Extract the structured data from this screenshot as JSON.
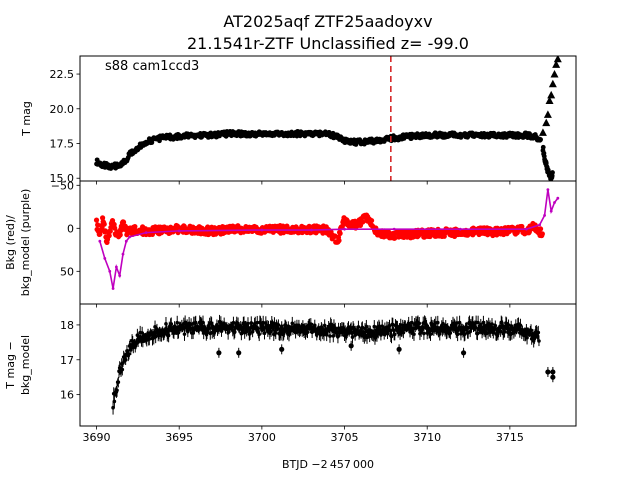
{
  "figure": {
    "title_line1": "AT2025aqf  ZTF25aadoyxv",
    "title_line2": "21.1541r-ZTF Unclassified z= -99.0",
    "xlabel": "BTJD −2 457 000"
  },
  "chart_data": [
    {
      "type": "scatter",
      "name": "tmag-panel",
      "ylabel": "T mag",
      "annotation": "s88 cam1ccd3",
      "xlim": [
        3689,
        3719
      ],
      "ylim": [
        23.8,
        14.8
      ],
      "y_inverted": true,
      "x_ticks": [
        3690,
        3695,
        3700,
        3705,
        3710,
        3715
      ],
      "y_ticks": [
        15.0,
        17.5,
        20.0,
        22.5
      ],
      "y_tick_labels": [
        "15.0",
        "17.5",
        "20.0",
        "22.5"
      ],
      "vline": {
        "x": 3707.8,
        "color": "#d62728",
        "style": "dashed"
      },
      "series_color": "#000000",
      "points": {
        "x": [
          3690.0,
          3690.3,
          3690.6,
          3690.9,
          3691.2,
          3691.5,
          3691.8,
          3692.0,
          3692.3,
          3692.6,
          3693.0,
          3693.5,
          3694.0,
          3695.0,
          3696.0,
          3697.0,
          3698.0,
          3699.0,
          3700.0,
          3701.0,
          3702.0,
          3703.0,
          3704.0,
          3704.5,
          3705.0,
          3705.5,
          3706.0,
          3707.0,
          3708.0,
          3709.0,
          3710.0,
          3711.0,
          3712.0,
          3713.0,
          3714.0,
          3715.0,
          3716.0,
          3716.5,
          3716.9
        ],
        "y": [
          16.2,
          16.0,
          15.9,
          15.8,
          15.9,
          16.0,
          16.3,
          16.7,
          17.0,
          17.3,
          17.6,
          17.8,
          17.9,
          18.0,
          18.1,
          18.1,
          18.2,
          18.2,
          18.2,
          18.2,
          18.2,
          18.2,
          18.2,
          18.0,
          17.7,
          17.6,
          17.6,
          17.7,
          17.9,
          18.0,
          18.1,
          18.1,
          18.1,
          18.1,
          18.1,
          18.1,
          18.1,
          18.0,
          17.8
        ]
      },
      "rise": {
        "x": [
          3717.0,
          3717.1,
          3717.2,
          3717.3,
          3717.4,
          3717.5,
          3717.6
        ],
        "y": [
          17.2,
          16.5,
          15.9,
          15.5,
          15.2,
          15.0,
          15.3
        ]
      },
      "upper_limits": {
        "marker": "triangle",
        "x": [
          3717.0,
          3717.2,
          3717.3,
          3717.4,
          3717.5,
          3717.6,
          3717.7,
          3717.8,
          3717.9
        ],
        "y": [
          18.3,
          19.0,
          19.6,
          20.6,
          21.0,
          21.8,
          22.5,
          23.2,
          23.6
        ]
      }
    },
    {
      "type": "scatter",
      "name": "bkg-panel",
      "ylabel_line1": "Bkg (red)/",
      "ylabel_line2": "bkg_model (purple)",
      "xlim": [
        3689,
        3719
      ],
      "ylim": [
        -55,
        88
      ],
      "x_ticks": [
        3690,
        3695,
        3700,
        3705,
        3710,
        3715
      ],
      "y_ticks": [
        50,
        0,
        -50
      ],
      "y_tick_labels": [
        "50",
        "0",
        "−50"
      ],
      "series": [
        {
          "name": "Bkg",
          "color": "#ff0000",
          "x": [
            3690.0,
            3690.2,
            3690.4,
            3690.6,
            3690.8,
            3691.0,
            3691.2,
            3691.4,
            3691.6,
            3691.8,
            3692.0,
            3692.5,
            3693.0,
            3694.0,
            3695.0,
            3696.0,
            3697.0,
            3698.0,
            3699.0,
            3700.0,
            3701.0,
            3702.0,
            3703.0,
            3704.0,
            3704.4,
            3704.6,
            3704.8,
            3705.0,
            3705.3,
            3705.6,
            3706.0,
            3706.3,
            3706.6,
            3707.0,
            3708.0,
            3709.0,
            3710.0,
            3711.0,
            3712.0,
            3713.0,
            3714.0,
            3715.0,
            3716.0,
            3716.5,
            3717.0
          ],
          "y": [
            -5,
            10,
            -12,
            15,
            2,
            -8,
            8,
            5,
            -5,
            4,
            3,
            2,
            3,
            2,
            1,
            2,
            3,
            2,
            1,
            2,
            1,
            2,
            1,
            2,
            12,
            14,
            2,
            -10,
            -2,
            -4,
            -8,
            -12,
            -6,
            6,
            8,
            7,
            6,
            5,
            5,
            4,
            4,
            3,
            2,
            -2,
            7
          ]
        },
        {
          "name": "bkg_model",
          "color": "#bf00bf",
          "x": [
            3690.2,
            3690.5,
            3690.8,
            3691.0,
            3691.2,
            3691.4,
            3691.6,
            3691.8,
            3692.0,
            3693.0,
            3695.0,
            3700.0,
            3703.0,
            3705.0,
            3708.0,
            3712.0,
            3716.0,
            3716.8,
            3717.1,
            3717.3,
            3717.5,
            3717.7,
            3717.9
          ],
          "y": [
            15,
            35,
            50,
            70,
            45,
            55,
            30,
            15,
            10,
            5,
            3,
            2,
            2,
            1,
            1,
            1,
            1,
            -4,
            -15,
            -45,
            -20,
            -30,
            -35
          ]
        }
      ]
    },
    {
      "type": "scatter",
      "name": "diff-panel",
      "ylabel_line1": "T mag −",
      "ylabel_line2": "bkg_model",
      "xlim": [
        3689,
        3719
      ],
      "ylim": [
        18.6,
        15.1
      ],
      "y_inverted": true,
      "x_ticks": [
        3690,
        3695,
        3700,
        3705,
        3710,
        3715
      ],
      "x_tick_labels": [
        "3690",
        "3695",
        "3700",
        "3705",
        "3710",
        "3715"
      ],
      "y_ticks": [
        16,
        17,
        18
      ],
      "y_tick_labels": [
        "16",
        "17",
        "18"
      ],
      "series_color": "#000000",
      "points": {
        "x": [
          3691.0,
          3691.2,
          3691.4,
          3691.6,
          3691.8,
          3692.0,
          3692.3,
          3692.6,
          3693.0,
          3693.5,
          3694.0,
          3695.0,
          3696.0,
          3697.0,
          3698.0,
          3699.0,
          3700.0,
          3701.0,
          3702.0,
          3703.0,
          3704.0,
          3705.0,
          3706.0,
          3707.0,
          3708.0,
          3709.0,
          3710.0,
          3711.0,
          3712.0,
          3713.0,
          3714.0,
          3715.0,
          3716.0,
          3716.8
        ],
        "y": [
          15.8,
          16.2,
          16.6,
          16.9,
          17.1,
          17.3,
          17.5,
          17.6,
          17.7,
          17.8,
          17.85,
          17.9,
          17.9,
          17.9,
          17.95,
          17.9,
          17.9,
          17.9,
          17.9,
          17.9,
          17.85,
          17.8,
          17.8,
          17.8,
          17.85,
          17.9,
          17.9,
          17.9,
          17.9,
          17.9,
          17.9,
          17.9,
          17.8,
          17.6
        ]
      },
      "outliers": {
        "x": [
          3697.4,
          3698.6,
          3701.2,
          3705.4,
          3708.3,
          3712.2,
          3717.3,
          3717.6,
          3717.6
        ],
        "y": [
          17.2,
          17.2,
          17.3,
          17.4,
          17.3,
          17.2,
          16.65,
          16.65,
          16.5
        ]
      }
    }
  ]
}
